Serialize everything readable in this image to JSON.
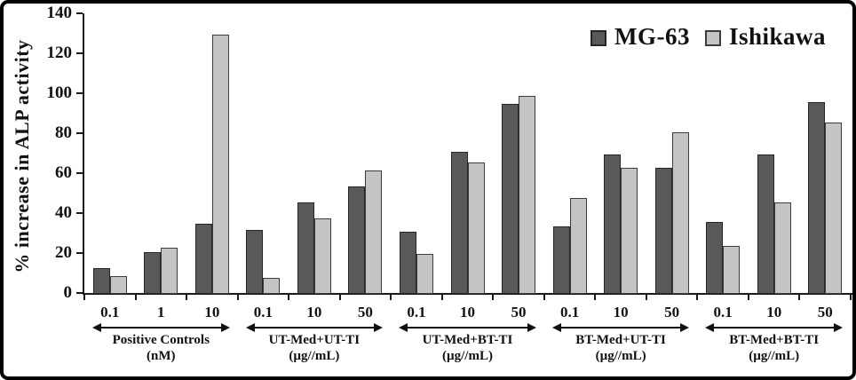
{
  "chart_data": {
    "type": "bar",
    "title": "",
    "xlabel": "",
    "ylabel": "% increase in ALP activity",
    "ylim": [
      0,
      140
    ],
    "yticks": [
      0,
      20,
      40,
      60,
      80,
      100,
      120,
      140
    ],
    "grid": false,
    "legend_position": "top-right",
    "legend": [
      {
        "name": "MG-63",
        "color": "#595959",
        "border": "#262626"
      },
      {
        "name": "Ishikawa",
        "color": "#c4c4c4",
        "border": "#3c3c3c"
      }
    ],
    "groups": [
      {
        "label": "Positive Controls",
        "unit": "(nM)",
        "categories": [
          "0.1",
          "1",
          "10"
        ],
        "series": [
          {
            "name": "MG-63",
            "values": [
              13,
              21,
              35
            ]
          },
          {
            "name": "Ishikawa",
            "values": [
              9,
              23,
              130
            ]
          }
        ]
      },
      {
        "label": "UT-Med+UT-TI",
        "unit": "(µg//mL)",
        "categories": [
          "0.1",
          "10",
          "50"
        ],
        "series": [
          {
            "name": "MG-63",
            "values": [
              32,
              46,
              54
            ]
          },
          {
            "name": "Ishikawa",
            "values": [
              8,
              38,
              62
            ]
          }
        ]
      },
      {
        "label": "UT-Med+BT-TI",
        "unit": "(µg//mL)",
        "categories": [
          "0.1",
          "10",
          "50"
        ],
        "series": [
          {
            "name": "MG-63",
            "values": [
              31,
              71,
              95
            ]
          },
          {
            "name": "Ishikawa",
            "values": [
              20,
              66,
              99
            ]
          }
        ]
      },
      {
        "label": "BT-Med+UT-TI",
        "unit": "(µg//mL)",
        "categories": [
          "0.1",
          "10",
          "50"
        ],
        "series": [
          {
            "name": "MG-63",
            "values": [
              34,
              70,
              63
            ]
          },
          {
            "name": "Ishikawa",
            "values": [
              48,
              63,
              81
            ]
          }
        ]
      },
      {
        "label": "BT-Med+BT-TI",
        "unit": "(µg//mL)",
        "categories": [
          "0.1",
          "10",
          "50"
        ],
        "series": [
          {
            "name": "MG-63",
            "values": [
              36,
              70,
              96
            ]
          },
          {
            "name": "Ishikawa",
            "values": [
              24,
              46,
              86
            ]
          }
        ]
      }
    ]
  }
}
